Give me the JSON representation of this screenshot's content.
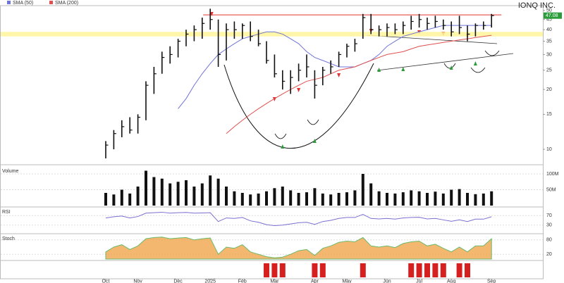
{
  "chart_data": {
    "type": "ohlc",
    "title": "IONQ INC.",
    "high": [
      11,
      12.5,
      14,
      14.5,
      15,
      22,
      26,
      31,
      33,
      36,
      40,
      42,
      46,
      51,
      45,
      43,
      44,
      43,
      44,
      40,
      35,
      30,
      25,
      25,
      27,
      30,
      25,
      26,
      28,
      31,
      34,
      36,
      48,
      48,
      42,
      43,
      43,
      44,
      47,
      48,
      46,
      47,
      45,
      44,
      47,
      42,
      43,
      44,
      48
    ],
    "low": [
      9,
      10,
      11.5,
      12,
      12,
      14,
      19,
      24,
      27,
      29,
      33,
      35,
      36,
      40,
      26,
      28,
      36,
      36,
      35,
      33,
      27,
      23,
      20,
      19,
      22,
      23,
      18,
      21,
      24,
      26,
      29,
      31,
      36,
      38,
      37,
      37,
      38,
      38,
      40,
      41,
      40,
      41,
      40,
      37,
      38,
      35,
      37,
      40,
      41
    ],
    "close": [
      10.5,
      12,
      13,
      12.5,
      14.5,
      21,
      24,
      29,
      30,
      35,
      38,
      40,
      43,
      45,
      30,
      40,
      40,
      42,
      37,
      34,
      28,
      24,
      22,
      23,
      25,
      26,
      21,
      25,
      26,
      30,
      33,
      34,
      46,
      40,
      40,
      41,
      40,
      42,
      44,
      45,
      43,
      44,
      42,
      39,
      41,
      38,
      42,
      42,
      47.08
    ],
    "color": "#111111",
    "log_scale": true,
    "ylim": [
      8.5,
      52
    ],
    "yticks": [
      10,
      15,
      20,
      25,
      30,
      35,
      40,
      45,
      50
    ],
    "series": [
      {
        "name": "SMA (50)",
        "color": "#6f74d8",
        "values": [
          null,
          null,
          null,
          null,
          null,
          null,
          null,
          null,
          null,
          16,
          18,
          21,
          24,
          27,
          30,
          32,
          34,
          36,
          37,
          38,
          39,
          39,
          38,
          36,
          34,
          31,
          29,
          28,
          27,
          26,
          26,
          26,
          27,
          28,
          30,
          33,
          35,
          37,
          38,
          39,
          40,
          41,
          42,
          42,
          42,
          42,
          42,
          42,
          42
        ]
      },
      {
        "name": "SMA (200)",
        "color": "#e05050",
        "values": [
          null,
          null,
          null,
          null,
          null,
          null,
          null,
          null,
          null,
          null,
          null,
          null,
          null,
          null,
          null,
          12,
          13,
          14,
          15,
          16,
          17,
          18,
          19,
          20,
          21,
          22,
          22.5,
          23,
          24,
          25,
          25.5,
          26,
          27,
          28,
          29,
          30,
          30.5,
          31,
          32,
          33,
          33.5,
          34,
          34.5,
          35,
          35.5,
          36,
          36.5,
          37,
          37.5
        ]
      }
    ],
    "resistance": 47.5,
    "support_zone": [
      37,
      39
    ],
    "xticks": [
      {
        "value": 0,
        "label": "Oct"
      },
      {
        "value": 4,
        "label": "Nov"
      },
      {
        "value": 9,
        "label": "Dec"
      },
      {
        "value": 13,
        "label": "2025"
      },
      {
        "value": 17,
        "label": "Feb"
      },
      {
        "value": 21,
        "label": "Mar"
      },
      {
        "value": 26,
        "label": "Apr"
      },
      {
        "value": 30,
        "label": "May"
      },
      {
        "value": 35,
        "label": "Jun"
      },
      {
        "value": 39,
        "label": "Jul"
      },
      {
        "value": 43,
        "label": "Aug"
      },
      {
        "value": 48,
        "label": "Sep"
      }
    ],
    "volume": {
      "name": "Volume",
      "color": "#111111",
      "values": [
        40,
        35,
        50,
        38,
        60,
        110,
        90,
        85,
        70,
        75,
        80,
        60,
        70,
        95,
        85,
        60,
        45,
        40,
        35,
        38,
        45,
        55,
        60,
        48,
        40,
        42,
        55,
        38,
        35,
        40,
        42,
        48,
        100,
        70,
        45,
        40,
        38,
        42,
        48,
        45,
        40,
        44,
        38,
        50,
        52,
        40,
        36,
        38,
        45
      ],
      "ylim": [
        0,
        120
      ],
      "yticks": [
        {
          "value": 50,
          "label": "50M"
        },
        {
          "value": 100,
          "label": "100M"
        }
      ]
    },
    "rsi": {
      "name": "RSI",
      "color": "#7a6fd0",
      "values": [
        60,
        65,
        68,
        60,
        66,
        80,
        82,
        84,
        80,
        82,
        83,
        80,
        81,
        82,
        45,
        60,
        58,
        62,
        48,
        42,
        32,
        28,
        30,
        35,
        40,
        42,
        33,
        45,
        50,
        58,
        62,
        62,
        75,
        58,
        56,
        58,
        55,
        60,
        62,
        63,
        56,
        58,
        52,
        46,
        52,
        45,
        55,
        55,
        65
      ],
      "ylim": [
        0,
        100
      ],
      "yticks": [
        30,
        70
      ]
    },
    "stoch": {
      "name": "Stoch",
      "color": "#f0a040",
      "values": [
        30,
        50,
        60,
        40,
        55,
        85,
        90,
        92,
        85,
        88,
        90,
        80,
        85,
        88,
        20,
        50,
        45,
        60,
        30,
        20,
        10,
        5,
        8,
        20,
        35,
        40,
        15,
        45,
        55,
        70,
        75,
        72,
        90,
        55,
        50,
        55,
        48,
        65,
        72,
        75,
        55,
        62,
        45,
        30,
        50,
        30,
        55,
        55,
        85
      ],
      "ylim": [
        0,
        100
      ],
      "yticks": [
        20,
        80
      ]
    },
    "signals": {
      "color": "#d62020",
      "values": [
        0,
        0,
        0,
        0,
        0,
        0,
        0,
        0,
        0,
        0,
        0,
        0,
        0,
        0,
        0,
        0,
        0,
        0,
        0,
        0,
        1,
        1,
        1,
        0,
        0,
        0,
        1,
        1,
        0,
        0,
        0,
        0,
        1,
        0,
        0,
        0,
        0,
        0,
        1,
        1,
        1,
        1,
        1,
        0,
        1,
        1,
        0,
        0,
        0
      ]
    }
  }
}
